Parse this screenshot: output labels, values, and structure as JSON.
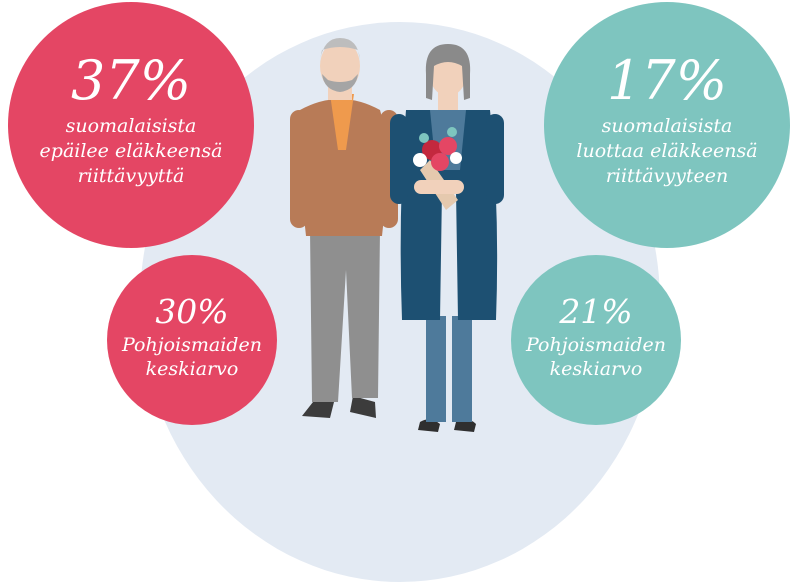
{
  "colors": {
    "red": "#e44664",
    "teal": "#7ec5bf",
    "backdrop": "#e3eaf3"
  },
  "stats": [
    {
      "percent": "37%",
      "lines": [
        "suomalaisista",
        "epäilee eläkkeensä",
        "riittävyyttä"
      ]
    },
    {
      "percent": "17%",
      "lines": [
        "suomalaisista",
        "luottaa eläkkeensä",
        "riittävyyteen"
      ]
    },
    {
      "percent": "30%",
      "lines": [
        "Pohjoismaiden",
        "keskiarvo"
      ]
    },
    {
      "percent": "21%",
      "lines": [
        "Pohjoismaiden",
        "keskiarvo"
      ]
    }
  ],
  "illustration": {
    "icons": [
      "elderly-man-icon",
      "elderly-woman-icon",
      "flower-bouquet-icon"
    ]
  }
}
